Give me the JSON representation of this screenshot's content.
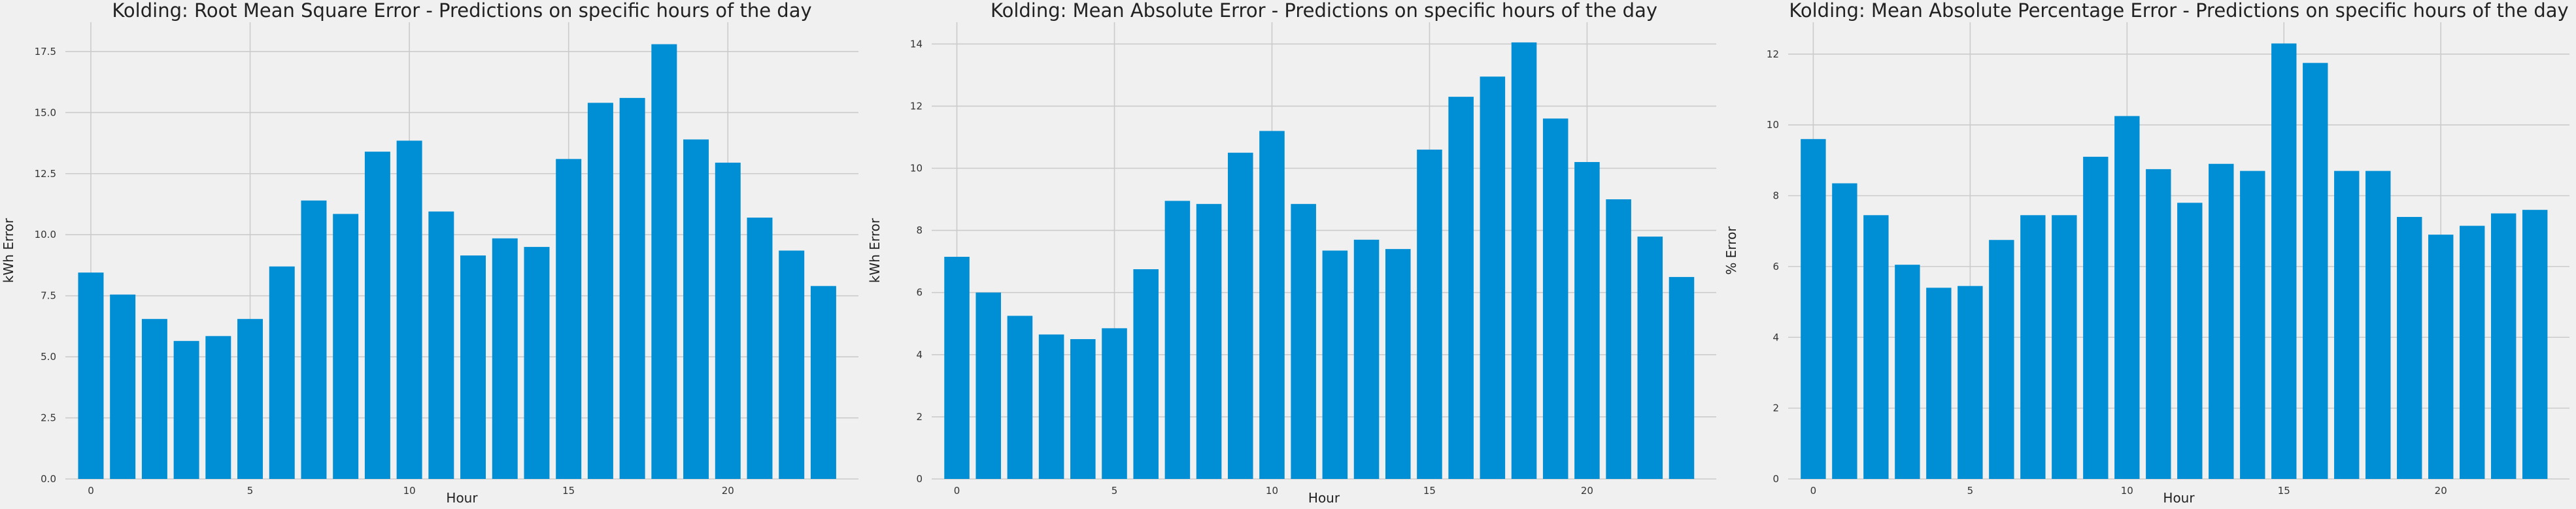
{
  "bar_color": "#008fd5",
  "background_color": "#f0f0f0",
  "grid_color": "#cbcbcb",
  "chart_data": [
    {
      "type": "bar",
      "title": "Kolding: Root Mean Square Error - Predictions on specific hours of the day",
      "xlabel": "Hour",
      "ylabel": "kWh Error",
      "x": [
        0,
        1,
        2,
        3,
        4,
        5,
        6,
        7,
        8,
        9,
        10,
        11,
        12,
        13,
        14,
        15,
        16,
        17,
        18,
        19,
        20,
        21,
        22,
        23
      ],
      "values": [
        8.45,
        7.55,
        6.55,
        5.65,
        5.85,
        6.55,
        8.7,
        11.4,
        10.85,
        13.4,
        13.85,
        10.95,
        9.15,
        9.85,
        9.5,
        13.1,
        15.4,
        15.6,
        17.8,
        13.9,
        12.95,
        10.7,
        9.35,
        7.9
      ],
      "xticks": [
        0,
        5,
        10,
        15,
        20
      ],
      "xtick_labels": [
        "0",
        "5",
        "10",
        "15",
        "20"
      ],
      "yticks": [
        0,
        2.5,
        5,
        7.5,
        10,
        12.5,
        15,
        17.5
      ],
      "ytick_labels": [
        "0.0",
        "2.5",
        "5.0",
        "7.5",
        "10.0",
        "12.5",
        "15.0",
        "17.5"
      ],
      "xlim": [
        -0.8,
        24.1
      ],
      "ylim": [
        0,
        18.7
      ],
      "grid": true
    },
    {
      "type": "bar",
      "title": "Kolding: Mean Absolute Error - Predictions on specific hours of the day",
      "xlabel": "Hour",
      "ylabel": "kWh Error",
      "x": [
        0,
        1,
        2,
        3,
        4,
        5,
        6,
        7,
        8,
        9,
        10,
        11,
        12,
        13,
        14,
        15,
        16,
        17,
        18,
        19,
        20,
        21,
        22,
        23
      ],
      "values": [
        7.15,
        6.0,
        5.25,
        4.65,
        4.5,
        4.85,
        6.75,
        8.95,
        8.85,
        10.5,
        11.2,
        8.85,
        7.35,
        7.7,
        7.4,
        10.6,
        12.3,
        12.95,
        14.05,
        11.6,
        10.2,
        9.0,
        7.8,
        6.5
      ],
      "xticks": [
        0,
        5,
        10,
        15,
        20
      ],
      "xtick_labels": [
        "0",
        "5",
        "10",
        "15",
        "20"
      ],
      "yticks": [
        0,
        2,
        4,
        6,
        8,
        10,
        12,
        14
      ],
      "ytick_labels": [
        "0",
        "2",
        "4",
        "6",
        "8",
        "10",
        "12",
        "14"
      ],
      "xlim": [
        -0.8,
        24.1
      ],
      "ylim": [
        0,
        14.7
      ],
      "grid": true
    },
    {
      "type": "bar",
      "title": "Kolding: Mean Absolute Percentage Error - Predictions on specific hours of the day",
      "xlabel": "Hour",
      "ylabel": "% Error",
      "x": [
        0,
        1,
        2,
        3,
        4,
        5,
        6,
        7,
        8,
        9,
        10,
        11,
        12,
        13,
        14,
        15,
        16,
        17,
        18,
        19,
        20,
        21,
        22,
        23
      ],
      "values": [
        9.6,
        8.35,
        7.45,
        6.05,
        5.4,
        5.45,
        6.75,
        7.45,
        7.45,
        9.1,
        10.25,
        8.75,
        7.8,
        8.9,
        8.7,
        12.3,
        11.75,
        8.7,
        8.7,
        7.4,
        6.9,
        7.15,
        7.5,
        7.6
      ],
      "xticks": [
        0,
        5,
        10,
        15,
        20
      ],
      "xtick_labels": [
        "0",
        "5",
        "10",
        "15",
        "20"
      ],
      "yticks": [
        0,
        2,
        4,
        6,
        8,
        10,
        12
      ],
      "ytick_labels": [
        "0",
        "2",
        "4",
        "6",
        "8",
        "10",
        "12"
      ],
      "xlim": [
        -0.8,
        24.1
      ],
      "ylim": [
        0,
        12.9
      ],
      "grid": true
    }
  ]
}
